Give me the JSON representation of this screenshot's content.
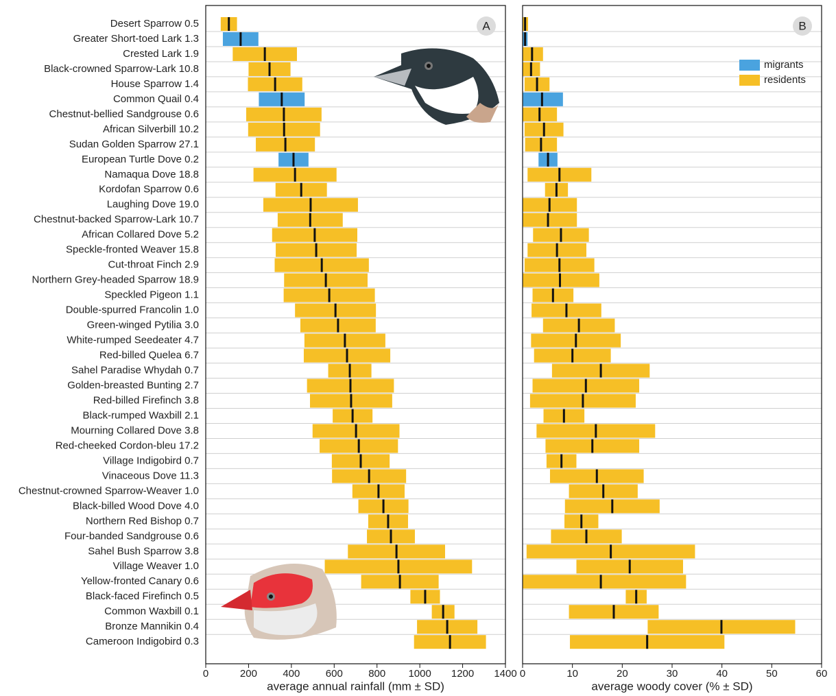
{
  "chart_data": [
    {
      "type": "range-bar",
      "label": "A",
      "xlabel": "average annual rainfall (mm ± SD)",
      "xlim": [
        0,
        1400
      ],
      "xticks": [
        0,
        200,
        400,
        600,
        800,
        1000,
        1200,
        1400
      ],
      "categories": [
        "Desert Sparrow 0.5",
        "Greater Short-toed Lark 1.3",
        "Crested Lark 1.9",
        "Black-crowned Sparrow-Lark 10.8",
        "House Sparrow 1.4",
        "Common Quail 0.4",
        "Chestnut-bellied Sandgrouse 0.6",
        "African Silverbill 10.2",
        "Sudan Golden Sparrow 27.1",
        "European Turtle Dove 0.2",
        "Namaqua Dove 18.8",
        "Kordofan Sparrow 0.6",
        "Laughing Dove 19.0",
        "Chestnut-backed Sparrow-Lark 10.7",
        "African Collared Dove 5.2",
        "Speckle-fronted Weaver 15.8",
        "Cut-throat Finch 2.9",
        "Northern Grey-headed Sparrow 18.9",
        "Speckled Pigeon 1.1",
        "Double-spurred Francolin 1.0",
        "Green-winged Pytilia 3.0",
        "White-rumped Seedeater 4.7",
        "Red-billed Quelea 6.7",
        "Sahel Paradise Whydah 0.7",
        "Golden-breasted Bunting 2.7",
        "Red-billed Firefinch 3.8",
        "Black-rumped Waxbill 2.1",
        "Mourning Collared Dove 3.8",
        "Red-cheeked Cordon-bleu 17.2",
        "Village Indigobird 0.7",
        "Vinaceous Dove 11.3",
        "Chestnut-crowned Sparrow-Weaver 1.0",
        "Black-billed Wood Dove 4.0",
        "Northern Red Bishop 0.7",
        "Four-banded Sandgrouse 0.6",
        "Sahel Bush Sparrow 3.8",
        "Village Weaver 1.0",
        "Yellow-fronted Canary 0.6",
        "Black-faced Firefinch 0.5",
        "Common Waxbill 0.1",
        "Bronze Mannikin 0.4",
        "Cameroon Indigobird 0.3"
      ],
      "migrant": [
        false,
        true,
        false,
        false,
        false,
        true,
        false,
        false,
        false,
        true,
        false,
        false,
        false,
        false,
        false,
        false,
        false,
        false,
        false,
        false,
        false,
        false,
        false,
        false,
        false,
        false,
        false,
        false,
        false,
        false,
        false,
        false,
        false,
        false,
        false,
        false,
        false,
        false,
        false,
        false,
        false,
        false
      ],
      "values": [
        108,
        163,
        276,
        298,
        324,
        355,
        365,
        366,
        372,
        410,
        417,
        446,
        490,
        488,
        509,
        516,
        542,
        561,
        577,
        606,
        618,
        650,
        660,
        673,
        676,
        679,
        686,
        702,
        715,
        724,
        763,
        807,
        830,
        852,
        865,
        891,
        900,
        907,
        1025,
        1109,
        1128,
        1141
      ],
      "errors": [
        38,
        83,
        150,
        98,
        127,
        107,
        176,
        168,
        138,
        70,
        194,
        120,
        221,
        152,
        199,
        189,
        220,
        195,
        213,
        189,
        176,
        189,
        202,
        101,
        203,
        192,
        93,
        203,
        183,
        135,
        173,
        122,
        117,
        93,
        112,
        227,
        344,
        181,
        69,
        53,
        141,
        168
      ]
    },
    {
      "type": "range-bar",
      "label": "B",
      "xlabel": "average woody cover (% ± SD)",
      "xlim": [
        0,
        60
      ],
      "xticks": [
        0,
        10,
        20,
        30,
        40,
        50,
        60
      ],
      "legend": "upper right",
      "series": [
        {
          "name": "migrants",
          "color": "#4aa3df"
        },
        {
          "name": "residents",
          "color": "#f6bf26"
        }
      ],
      "values": [
        0.5,
        0.5,
        1.9,
        1.7,
        2.9,
        3.9,
        3.4,
        4.3,
        3.7,
        5.1,
        7.4,
        6.8,
        5.4,
        5.1,
        7.7,
        6.9,
        7.4,
        7.5,
        6.1,
        8.8,
        11.3,
        10.7,
        10.0,
        15.7,
        12.7,
        12.1,
        8.3,
        14.7,
        14.0,
        7.8,
        14.9,
        16.2,
        18.0,
        11.8,
        12.8,
        17.7,
        21.5,
        15.7,
        22.8,
        18.3,
        39.9,
        25.0
      ],
      "errors": [
        0.6,
        0.5,
        2.2,
        1.8,
        2.5,
        4.2,
        3.5,
        3.9,
        3.2,
        1.9,
        6.4,
        2.3,
        5.5,
        5.8,
        5.6,
        5.9,
        7.0,
        7.9,
        4.1,
        7.0,
        7.2,
        9.0,
        7.7,
        9.8,
        10.7,
        10.6,
        4.1,
        11.9,
        9.4,
        3.0,
        9.4,
        6.9,
        9.5,
        3.4,
        7.1,
        16.9,
        10.7,
        17.1,
        2.1,
        9.0,
        14.8,
        15.5
      ]
    }
  ]
}
